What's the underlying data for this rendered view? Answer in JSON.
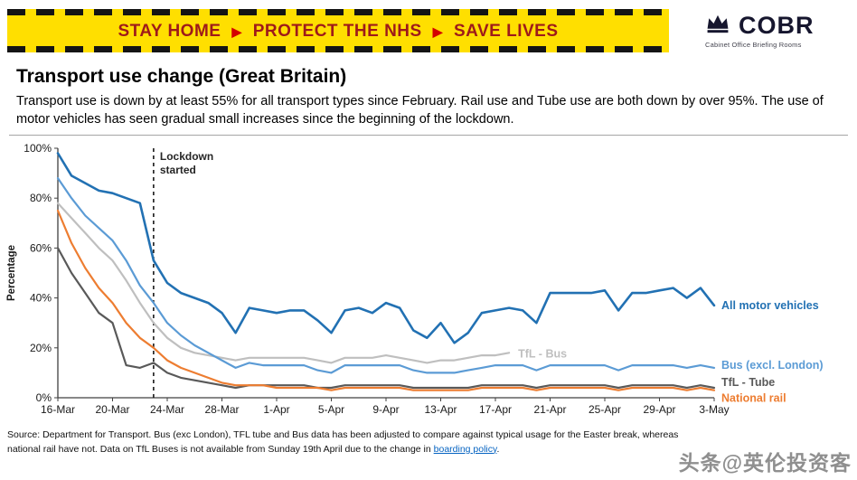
{
  "banner": {
    "segments": [
      "STAY HOME",
      "PROTECT THE NHS",
      "SAVE LIVES"
    ],
    "separator": "▶",
    "bg_color": "#ffdf00",
    "text_color": "#9e1a1a",
    "chevron_color": "#d40000"
  },
  "logo": {
    "title": "COBR",
    "subtitle": "Cabinet Office Briefing Rooms",
    "icon": "crown-icon",
    "color": "#16162e"
  },
  "header": {
    "title": "Transport use change (Great Britain)",
    "description": "Transport use is down by at least 55% for all transport types since February. Rail use and Tube use are both down by over 95%. The use of motor vehicles has seen gradual small increases since the beginning of the lockdown."
  },
  "chart_data": {
    "type": "line",
    "title": "",
    "xlabel": "",
    "ylabel": "Percentage",
    "ylim": [
      0,
      100
    ],
    "yticks": [
      0,
      20,
      40,
      60,
      80,
      100
    ],
    "ytick_suffix": "%",
    "grid": false,
    "legend_position": "right-inline-labels",
    "x": [
      "16-Mar",
      "17-Mar",
      "18-Mar",
      "19-Mar",
      "20-Mar",
      "21-Mar",
      "22-Mar",
      "23-Mar",
      "24-Mar",
      "25-Mar",
      "26-Mar",
      "27-Mar",
      "28-Mar",
      "29-Mar",
      "30-Mar",
      "31-Mar",
      "1-Apr",
      "2-Apr",
      "3-Apr",
      "4-Apr",
      "5-Apr",
      "6-Apr",
      "7-Apr",
      "8-Apr",
      "9-Apr",
      "10-Apr",
      "11-Apr",
      "12-Apr",
      "13-Apr",
      "14-Apr",
      "15-Apr",
      "16-Apr",
      "17-Apr",
      "18-Apr",
      "19-Apr",
      "20-Apr",
      "21-Apr",
      "22-Apr",
      "23-Apr",
      "24-Apr",
      "25-Apr",
      "26-Apr",
      "27-Apr",
      "28-Apr",
      "29-Apr",
      "30-Apr",
      "1-May",
      "2-May",
      "3-May"
    ],
    "xtick_indices": [
      0,
      4,
      8,
      12,
      16,
      20,
      24,
      28,
      32,
      36,
      40,
      44,
      48
    ],
    "xtick_labels": [
      "16-Mar",
      "20-Mar",
      "24-Mar",
      "28-Mar",
      "1-Apr",
      "5-Apr",
      "9-Apr",
      "13-Apr",
      "17-Apr",
      "21-Apr",
      "25-Apr",
      "29-Apr",
      "3-May"
    ],
    "annotation": {
      "label_lines": [
        "Lockdown",
        "started"
      ],
      "x_index": 7
    },
    "series": [
      {
        "name": "All motor vehicles",
        "color": "#2271b3",
        "width": 2.6,
        "label_dy": 0,
        "values": [
          98,
          89,
          86,
          83,
          82,
          80,
          78,
          55,
          46,
          42,
          40,
          38,
          34,
          26,
          36,
          35,
          34,
          35,
          35,
          31,
          26,
          35,
          36,
          34,
          38,
          36,
          27,
          24,
          30,
          22,
          26,
          34,
          35,
          36,
          35,
          30,
          42,
          42,
          42,
          42,
          43,
          35,
          42,
          42,
          43,
          44,
          40,
          44,
          37
        ]
      },
      {
        "name": "TfL - Bus",
        "color": "#bfbfbf",
        "width": 2.2,
        "label_at": "line_end",
        "label_dy": 1,
        "values": [
          78,
          72,
          66,
          60,
          55,
          47,
          38,
          30,
          24,
          20,
          18,
          17,
          16,
          15,
          16,
          16,
          16,
          16,
          16,
          15,
          14,
          16,
          16,
          16,
          17,
          16,
          15,
          14,
          15,
          15,
          16,
          17,
          17,
          18,
          null,
          null,
          null,
          null,
          null,
          null,
          null,
          null,
          null,
          null,
          null,
          null,
          null,
          null,
          null
        ]
      },
      {
        "name": "Bus (excl. London)",
        "color": "#5b9bd5",
        "width": 2.2,
        "label_dy": -3,
        "values": [
          88,
          80,
          73,
          68,
          63,
          55,
          45,
          38,
          30,
          25,
          21,
          18,
          15,
          12,
          14,
          13,
          13,
          13,
          13,
          11,
          10,
          13,
          13,
          13,
          13,
          13,
          11,
          10,
          10,
          10,
          11,
          12,
          13,
          13,
          13,
          11,
          13,
          13,
          13,
          13,
          13,
          11,
          13,
          13,
          13,
          13,
          12,
          13,
          12
        ]
      },
      {
        "name": "TfL - Tube",
        "color": "#595959",
        "width": 2.2,
        "label_dy": -6,
        "values": [
          60,
          50,
          42,
          34,
          30,
          13,
          12,
          14,
          10,
          8,
          7,
          6,
          5,
          4,
          5,
          5,
          5,
          5,
          5,
          4,
          4,
          5,
          5,
          5,
          5,
          5,
          4,
          4,
          4,
          4,
          4,
          5,
          5,
          5,
          5,
          4,
          5,
          5,
          5,
          5,
          5,
          4,
          5,
          5,
          5,
          5,
          4,
          5,
          4
        ]
      },
      {
        "name": "National rail",
        "color": "#ed7d31",
        "width": 2.2,
        "label_dy": 9,
        "values": [
          75,
          62,
          52,
          44,
          38,
          30,
          24,
          20,
          15,
          12,
          10,
          8,
          6,
          5,
          5,
          5,
          4,
          4,
          4,
          4,
          3,
          4,
          4,
          4,
          4,
          4,
          3,
          3,
          3,
          3,
          3,
          4,
          4,
          4,
          4,
          3,
          4,
          4,
          4,
          4,
          4,
          3,
          4,
          4,
          4,
          4,
          3,
          4,
          3
        ]
      }
    ]
  },
  "footer": {
    "line1": "Source: Department for Transport. Bus (exc London), TFL tube and Bus data has been adjusted to compare against typical usage for the Easter break, whereas",
    "line2_prefix": "national rail have not. Data on TfL Buses is not available from Sunday 19th April due to the change in ",
    "link_text": "boarding policy",
    "line2_suffix": "."
  },
  "watermark": "头条@英伦投资客"
}
